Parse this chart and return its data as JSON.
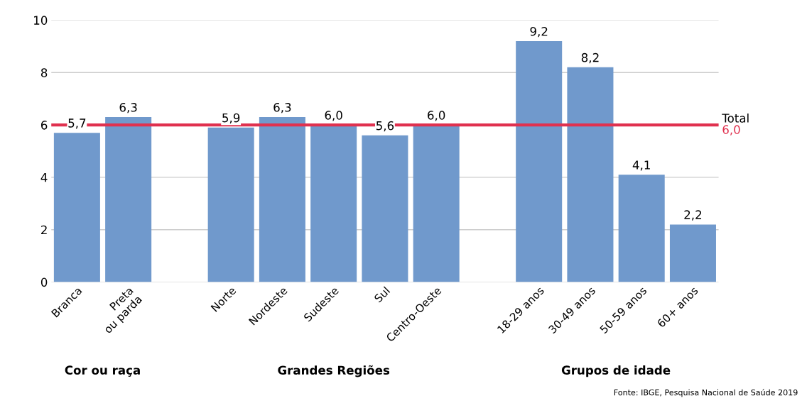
{
  "chart_data": {
    "type": "bar",
    "categories": [
      "Branca",
      "Preta\nou parda",
      null,
      "Norte",
      "Nordeste",
      "Sudeste",
      "Sul",
      "Centro-Oeste",
      null,
      "18-29 anos",
      "30-49 anos",
      "50-59 anos",
      "60+ anos"
    ],
    "values": [
      5.7,
      6.3,
      null,
      5.9,
      6.3,
      6.0,
      5.6,
      6.0,
      null,
      9.2,
      8.2,
      4.1,
      2.2
    ],
    "value_labels": [
      "5,7",
      "6,3",
      null,
      "5,9",
      "6,3",
      "6,0",
      "5,6",
      "6,0",
      null,
      "9,2",
      "8,2",
      "4,1",
      "2,2"
    ],
    "color": "#7099cc",
    "ylim": [
      0,
      10
    ],
    "yticks": [
      0,
      2,
      4,
      6,
      8,
      10
    ],
    "grid": "y",
    "ref_lines": [
      {
        "axis": "y",
        "value": 6.0,
        "label": "Total",
        "color": "#e0314f"
      }
    ],
    "annotations": [
      "Cor ou raça",
      "Grandes Regiões",
      "Grupos de idade",
      "6,0",
      "Fonte: IBGE, Pesquisa Nacional de Saúde 2019"
    ]
  }
}
